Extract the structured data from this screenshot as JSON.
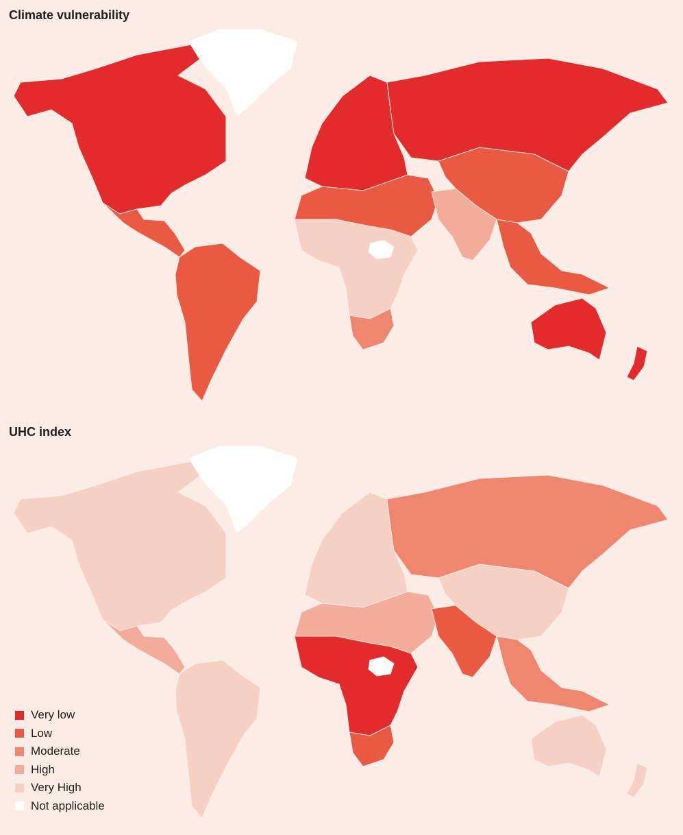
{
  "titles": {
    "climate": "Climate vulnerability",
    "uhc": "UHC index"
  },
  "legend": [
    {
      "label": "Very low",
      "color": "#e32b2d"
    },
    {
      "label": "Low",
      "color": "#ea5a43"
    },
    {
      "label": "Moderate",
      "color": "#ef866f"
    },
    {
      "label": "High",
      "color": "#f1ad9a"
    },
    {
      "label": "Very High",
      "color": "#f6d0c3"
    },
    {
      "label": "Not applicable",
      "color": "#ffffff"
    }
  ],
  "maps": {
    "climate": {
      "north_america": "Very low",
      "greenland": "Not applicable",
      "mexico_central_america": "Low",
      "south_america": "Low",
      "europe": "Very low",
      "russia": "Very low",
      "china_mongolia": "Low",
      "north_africa_middle_east": "Low",
      "south_asia": "High",
      "southeast_asia": "Low",
      "sub_saharan_africa": "Very High",
      "southern_africa": "Moderate",
      "south_sudan": "Not applicable",
      "australia": "Very low",
      "new_zealand": "Very low"
    },
    "uhc": {
      "north_america": "Very High",
      "greenland": "Not applicable",
      "mexico_central_america": "High",
      "south_america": "Very High",
      "europe": "Very High",
      "russia": "Moderate",
      "china_mongolia": "Very High",
      "north_africa_middle_east": "High",
      "south_asia": "Low",
      "southeast_asia": "Moderate",
      "sub_saharan_africa": "Very low",
      "southern_africa": "Low",
      "south_sudan": "Not applicable",
      "australia": "Very High",
      "new_zealand": "Very High"
    }
  }
}
